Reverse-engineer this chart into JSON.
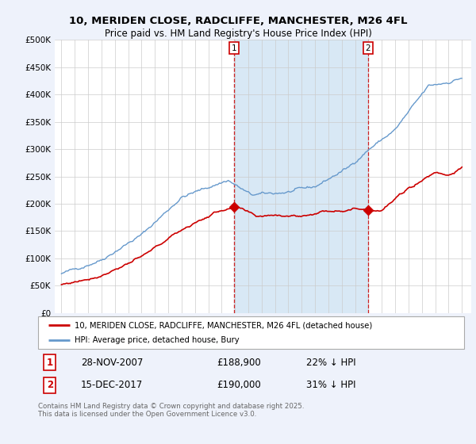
{
  "title_line1": "10, MERIDEN CLOSE, RADCLIFFE, MANCHESTER, M26 4FL",
  "title_line2": "Price paid vs. HM Land Registry's House Price Index (HPI)",
  "legend_label_red": "10, MERIDEN CLOSE, RADCLIFFE, MANCHESTER, M26 4FL (detached house)",
  "legend_label_blue": "HPI: Average price, detached house, Bury",
  "transaction1_label": "1",
  "transaction1_date": "28-NOV-2007",
  "transaction1_price": "£188,900",
  "transaction1_hpi": "22% ↓ HPI",
  "transaction2_label": "2",
  "transaction2_date": "15-DEC-2017",
  "transaction2_price": "£190,000",
  "transaction2_hpi": "31% ↓ HPI",
  "footnote": "Contains HM Land Registry data © Crown copyright and database right 2025.\nThis data is licensed under the Open Government Licence v3.0.",
  "red_color": "#cc0000",
  "blue_color": "#6699cc",
  "shade_color": "#d8e8f5",
  "dashed_line_color": "#cc0000",
  "background_color": "#eef2fb",
  "plot_bg_color": "#ffffff",
  "grid_color": "#cccccc",
  "marker1_x": 2007.92,
  "marker2_x": 2017.96,
  "ylim_max": 500000,
  "ylim_min": 0,
  "xlim_min": 1994.5,
  "xlim_max": 2025.7
}
